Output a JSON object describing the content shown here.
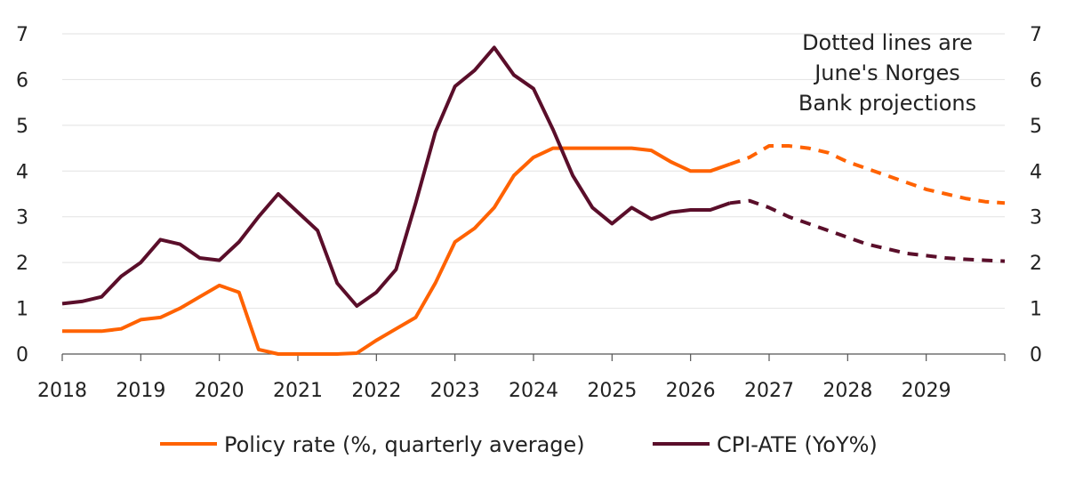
{
  "chart_data": {
    "type": "line",
    "title": "",
    "xlabel": "",
    "ylabel": "",
    "xlim": [
      2018,
      2030
    ],
    "ylim": [
      0,
      7
    ],
    "yticks": [
      "0",
      "1",
      "2",
      "3",
      "4",
      "5",
      "6",
      "7"
    ],
    "xticks": [
      "2018",
      "2019",
      "2020",
      "2021",
      "2022",
      "2023",
      "2024",
      "2025",
      "2026",
      "2027",
      "2028",
      "2029"
    ],
    "grid": "horizontal",
    "legend_position": "bottom",
    "annotation": [
      "Dotted lines are",
      "June's Norges",
      "Bank projections"
    ],
    "series": [
      {
        "name": "Policy rate (%, quarterly average)",
        "color": "#FF6200",
        "style": "solid",
        "x": [
          2018.0,
          2018.25,
          2018.5,
          2018.75,
          2019.0,
          2019.25,
          2019.5,
          2019.75,
          2020.0,
          2020.25,
          2020.5,
          2020.75,
          2021.0,
          2021.25,
          2021.5,
          2021.75,
          2022.0,
          2022.25,
          2022.5,
          2022.75,
          2023.0,
          2023.25,
          2023.5,
          2023.75,
          2024.0,
          2024.25,
          2024.5,
          2024.75,
          2025.0,
          2025.25,
          2025.5,
          2025.75,
          2026.0,
          2026.25,
          2026.5
        ],
        "y": [
          0.5,
          0.5,
          0.5,
          0.55,
          0.75,
          0.8,
          1.0,
          1.25,
          1.5,
          1.35,
          0.1,
          0.0,
          0.0,
          0.0,
          0.0,
          0.02,
          0.3,
          0.55,
          0.8,
          1.55,
          2.45,
          2.75,
          3.2,
          3.9,
          4.3,
          4.5,
          4.5,
          4.5,
          4.5,
          4.5,
          4.45,
          4.2,
          4.0,
          4.0,
          4.15
        ]
      },
      {
        "name": "Policy rate projection",
        "color": "#FF6200",
        "style": "dotted",
        "x": [
          2026.5,
          2026.75,
          2027.0,
          2027.25,
          2027.5,
          2027.75,
          2028.0,
          2028.25,
          2028.5,
          2028.75,
          2029.0,
          2029.25,
          2029.5,
          2029.75,
          2030.0
        ],
        "y": [
          4.15,
          4.3,
          4.55,
          4.55,
          4.5,
          4.4,
          4.2,
          4.05,
          3.9,
          3.75,
          3.6,
          3.5,
          3.4,
          3.33,
          3.3
        ]
      },
      {
        "name": "CPI-ATE (YoY%)",
        "color": "#5A0E2A",
        "style": "solid",
        "x": [
          2018.0,
          2018.25,
          2018.5,
          2018.75,
          2019.0,
          2019.25,
          2019.5,
          2019.75,
          2020.0,
          2020.25,
          2020.5,
          2020.75,
          2021.0,
          2021.25,
          2021.5,
          2021.75,
          2022.0,
          2022.25,
          2022.5,
          2022.75,
          2023.0,
          2023.25,
          2023.5,
          2023.75,
          2024.0,
          2024.25,
          2024.5,
          2024.75,
          2025.0,
          2025.25,
          2025.5,
          2025.75,
          2026.0,
          2026.25,
          2026.5
        ],
        "y": [
          1.1,
          1.15,
          1.25,
          1.7,
          2.0,
          2.5,
          2.4,
          2.1,
          2.05,
          2.45,
          3.0,
          3.5,
          3.1,
          2.7,
          1.55,
          1.05,
          1.35,
          1.85,
          3.3,
          4.85,
          5.85,
          6.2,
          6.7,
          6.1,
          5.8,
          4.9,
          3.9,
          3.2,
          2.85,
          3.2,
          2.95,
          3.1,
          3.15,
          3.15,
          3.3
        ]
      },
      {
        "name": "CPI-ATE projection",
        "color": "#5A0E2A",
        "style": "dotted",
        "x": [
          2026.5,
          2026.75,
          2027.0,
          2027.25,
          2027.5,
          2027.75,
          2028.0,
          2028.25,
          2028.5,
          2028.75,
          2029.0,
          2029.25,
          2029.5,
          2029.75,
          2030.0
        ],
        "y": [
          3.3,
          3.35,
          3.2,
          3.0,
          2.85,
          2.7,
          2.55,
          2.4,
          2.3,
          2.2,
          2.15,
          2.1,
          2.07,
          2.05,
          2.03
        ]
      }
    ]
  }
}
